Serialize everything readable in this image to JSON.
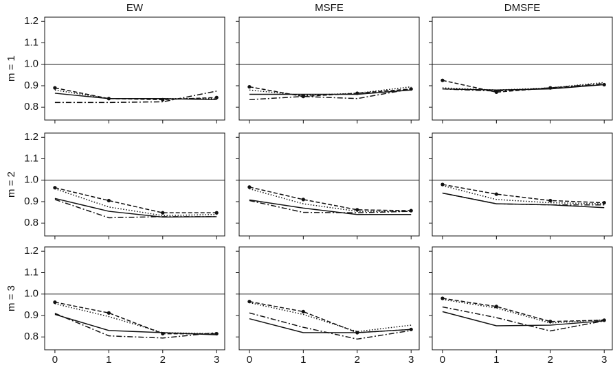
{
  "chart_data": [
    {
      "type": "line",
      "title": "EW",
      "ylabel": "m = 1",
      "x": [
        0,
        1,
        2,
        3
      ],
      "xlim": [
        -0.19,
        3.15
      ],
      "xticks": [
        0,
        1,
        2,
        3
      ],
      "show_xtick_labels": false,
      "ylim": [
        0.74,
        1.22
      ],
      "yticks": [
        {
          "value": 0.8,
          "label": "0.8"
        },
        {
          "value": 0.9,
          "label": "0.9"
        },
        {
          "value": 1.0,
          "label": "1.0"
        },
        {
          "value": 1.1,
          "label": "1.1"
        },
        {
          "value": 1.2,
          "label": "1.2"
        }
      ],
      "show_ytick_labels": true,
      "hline": 1.0,
      "series": [
        {
          "color": "#111111",
          "style": "solid",
          "markers": false,
          "values": [
            0.865,
            0.84,
            0.84,
            0.835
          ]
        },
        {
          "color": "#111111",
          "style": "dashed",
          "markers": true,
          "values": [
            0.89,
            0.84,
            0.835,
            0.845
          ]
        },
        {
          "color": "#111111",
          "style": "dotted",
          "markers": false,
          "values": [
            0.88,
            0.84,
            0.84,
            0.84
          ]
        },
        {
          "color": "#111111",
          "style": "dashdot",
          "markers": false,
          "values": [
            0.822,
            0.822,
            0.825,
            0.875
          ]
        }
      ]
    },
    {
      "type": "line",
      "title": "MSFE",
      "x": [
        0,
        1,
        2,
        3
      ],
      "xlim": [
        -0.19,
        3.15
      ],
      "xticks": [
        0,
        1,
        2,
        3
      ],
      "show_xtick_labels": false,
      "ylim": [
        0.74,
        1.22
      ],
      "yticks": [
        0.8,
        0.9,
        1,
        1.1,
        1.2
      ],
      "show_ytick_labels": false,
      "hline": 1.0,
      "series": [
        {
          "color": "#111111",
          "style": "solid",
          "markers": false,
          "values": [
            0.86,
            0.86,
            0.86,
            0.88
          ]
        },
        {
          "color": "#111111",
          "style": "dashed",
          "markers": true,
          "values": [
            0.895,
            0.85,
            0.865,
            0.885
          ]
        },
        {
          "color": "#111111",
          "style": "dotted",
          "markers": false,
          "values": [
            0.88,
            0.855,
            0.865,
            0.895
          ]
        },
        {
          "color": "#111111",
          "style": "dashdot",
          "markers": false,
          "values": [
            0.835,
            0.85,
            0.84,
            0.885
          ]
        }
      ]
    },
    {
      "type": "line",
      "title": "DMSFE",
      "x": [
        0,
        1,
        2,
        3
      ],
      "xlim": [
        -0.19,
        3.15
      ],
      "xticks": [
        0,
        1,
        2,
        3
      ],
      "show_xtick_labels": false,
      "ylim": [
        0.74,
        1.22
      ],
      "yticks": [
        0.8,
        0.9,
        1,
        1.1,
        1.2
      ],
      "show_ytick_labels": false,
      "hline": 1.0,
      "series": [
        {
          "color": "#111111",
          "style": "solid",
          "markers": false,
          "values": [
            0.885,
            0.88,
            0.885,
            0.905
          ]
        },
        {
          "color": "#111111",
          "style": "dashed",
          "markers": true,
          "values": [
            0.925,
            0.87,
            0.89,
            0.905
          ]
        },
        {
          "color": "#111111",
          "style": "dotted",
          "markers": false,
          "values": [
            0.89,
            0.88,
            0.89,
            0.915
          ]
        },
        {
          "color": "#111111",
          "style": "dashdot",
          "markers": false,
          "values": [
            0.885,
            0.875,
            0.89,
            0.91
          ]
        }
      ]
    },
    {
      "type": "line",
      "ylabel": "m = 2",
      "x": [
        0,
        1,
        2,
        3
      ],
      "xlim": [
        -0.19,
        3.15
      ],
      "xticks": [
        0,
        1,
        2,
        3
      ],
      "show_xtick_labels": false,
      "ylim": [
        0.74,
        1.22
      ],
      "yticks": [
        {
          "value": 0.8,
          "label": "0.8"
        },
        {
          "value": 0.9,
          "label": "0.9"
        },
        {
          "value": 1.0,
          "label": "1.0"
        },
        {
          "value": 1.1,
          "label": "1.1"
        },
        {
          "value": 1.2,
          "label": "1.2"
        }
      ],
      "show_ytick_labels": true,
      "hline": 1.0,
      "series": [
        {
          "color": "#111111",
          "style": "solid",
          "markers": false,
          "values": [
            0.915,
            0.855,
            0.828,
            0.83
          ]
        },
        {
          "color": "#111111",
          "style": "dashed",
          "markers": true,
          "values": [
            0.965,
            0.905,
            0.848,
            0.848
          ]
        },
        {
          "color": "#111111",
          "style": "dotted",
          "markers": false,
          "values": [
            0.96,
            0.875,
            0.835,
            0.84
          ]
        },
        {
          "color": "#111111",
          "style": "dashdot",
          "markers": false,
          "values": [
            0.91,
            0.825,
            0.83,
            0.83
          ]
        }
      ]
    },
    {
      "type": "line",
      "x": [
        0,
        1,
        2,
        3
      ],
      "xlim": [
        -0.19,
        3.15
      ],
      "xticks": [
        0,
        1,
        2,
        3
      ],
      "show_xtick_labels": false,
      "ylim": [
        0.74,
        1.22
      ],
      "yticks": [
        0.8,
        0.9,
        1,
        1.1,
        1.2
      ],
      "show_ytick_labels": false,
      "hline": 1.0,
      "series": [
        {
          "color": "#111111",
          "style": "solid",
          "markers": false,
          "values": [
            0.908,
            0.87,
            0.84,
            0.84
          ]
        },
        {
          "color": "#111111",
          "style": "dashed",
          "markers": true,
          "values": [
            0.968,
            0.91,
            0.862,
            0.858
          ]
        },
        {
          "color": "#111111",
          "style": "dotted",
          "markers": false,
          "values": [
            0.96,
            0.89,
            0.855,
            0.855
          ]
        },
        {
          "color": "#111111",
          "style": "dashdot",
          "markers": false,
          "values": [
            0.905,
            0.85,
            0.848,
            0.855
          ]
        }
      ]
    },
    {
      "type": "line",
      "x": [
        0,
        1,
        2,
        3
      ],
      "xlim": [
        -0.19,
        3.15
      ],
      "xticks": [
        0,
        1,
        2,
        3
      ],
      "show_xtick_labels": false,
      "ylim": [
        0.74,
        1.22
      ],
      "yticks": [
        0.8,
        0.9,
        1,
        1.1,
        1.2
      ],
      "show_ytick_labels": false,
      "hline": 1.0,
      "series": [
        {
          "color": "#111111",
          "style": "solid",
          "markers": false,
          "values": [
            0.94,
            0.89,
            0.885,
            0.872
          ]
        },
        {
          "color": "#111111",
          "style": "dashed",
          "markers": true,
          "values": [
            0.98,
            0.935,
            0.905,
            0.895
          ]
        },
        {
          "color": "#111111",
          "style": "dotted",
          "markers": false,
          "values": [
            0.975,
            0.91,
            0.895,
            0.89
          ]
        },
        {
          "color": "#111111",
          "style": "dashdot",
          "markers": false,
          "values": [
            0.94,
            0.89,
            0.885,
            0.885
          ]
        }
      ]
    },
    {
      "type": "line",
      "ylabel": "m = 3",
      "x": [
        0,
        1,
        2,
        3
      ],
      "xlim": [
        -0.19,
        3.15
      ],
      "xticks": [
        0,
        1,
        2,
        3
      ],
      "show_xtick_labels": true,
      "ylim": [
        0.74,
        1.22
      ],
      "yticks": [
        {
          "value": 0.8,
          "label": "0.8"
        },
        {
          "value": 0.9,
          "label": "0.9"
        },
        {
          "value": 1.0,
          "label": "1.0"
        },
        {
          "value": 1.1,
          "label": "1.1"
        },
        {
          "value": 1.2,
          "label": "1.2"
        }
      ],
      "show_ytick_labels": true,
      "hline": 1.0,
      "series": [
        {
          "color": "#111111",
          "style": "solid",
          "markers": false,
          "values": [
            0.905,
            0.83,
            0.82,
            0.81
          ]
        },
        {
          "color": "#111111",
          "style": "dashed",
          "markers": true,
          "values": [
            0.962,
            0.912,
            0.815,
            0.815
          ]
        },
        {
          "color": "#111111",
          "style": "dotted",
          "markers": false,
          "values": [
            0.955,
            0.895,
            0.82,
            0.815
          ]
        },
        {
          "color": "#111111",
          "style": "dashdot",
          "markers": false,
          "values": [
            0.91,
            0.805,
            0.795,
            0.82
          ]
        }
      ]
    },
    {
      "type": "line",
      "x": [
        0,
        1,
        2,
        3
      ],
      "xlim": [
        -0.19,
        3.15
      ],
      "xticks": [
        0,
        1,
        2,
        3
      ],
      "show_xtick_labels": true,
      "ylim": [
        0.74,
        1.22
      ],
      "yticks": [
        0.8,
        0.9,
        1,
        1.1,
        1.2
      ],
      "show_ytick_labels": false,
      "hline": 1.0,
      "series": [
        {
          "color": "#111111",
          "style": "solid",
          "markers": false,
          "values": [
            0.885,
            0.82,
            0.82,
            0.835
          ]
        },
        {
          "color": "#111111",
          "style": "dashed",
          "markers": true,
          "values": [
            0.965,
            0.918,
            0.82,
            0.835
          ]
        },
        {
          "color": "#111111",
          "style": "dotted",
          "markers": false,
          "values": [
            0.96,
            0.905,
            0.825,
            0.855
          ]
        },
        {
          "color": "#111111",
          "style": "dashdot",
          "markers": false,
          "values": [
            0.912,
            0.845,
            0.79,
            0.83
          ]
        }
      ]
    },
    {
      "type": "line",
      "x": [
        0,
        1,
        2,
        3
      ],
      "xlim": [
        -0.19,
        3.15
      ],
      "xticks": [
        0,
        1,
        2,
        3
      ],
      "show_xtick_labels": true,
      "ylim": [
        0.74,
        1.22
      ],
      "yticks": [
        0.8,
        0.9,
        1,
        1.1,
        1.2
      ],
      "show_ytick_labels": false,
      "hline": 1.0,
      "series": [
        {
          "color": "#111111",
          "style": "solid",
          "markers": false,
          "values": [
            0.918,
            0.852,
            0.855,
            0.875
          ]
        },
        {
          "color": "#111111",
          "style": "dashed",
          "markers": true,
          "values": [
            0.98,
            0.942,
            0.872,
            0.878
          ]
        },
        {
          "color": "#111111",
          "style": "dotted",
          "markers": false,
          "values": [
            0.975,
            0.935,
            0.865,
            0.88
          ]
        },
        {
          "color": "#111111",
          "style": "dashdot",
          "markers": false,
          "values": [
            0.94,
            0.89,
            0.828,
            0.875
          ]
        }
      ]
    }
  ]
}
